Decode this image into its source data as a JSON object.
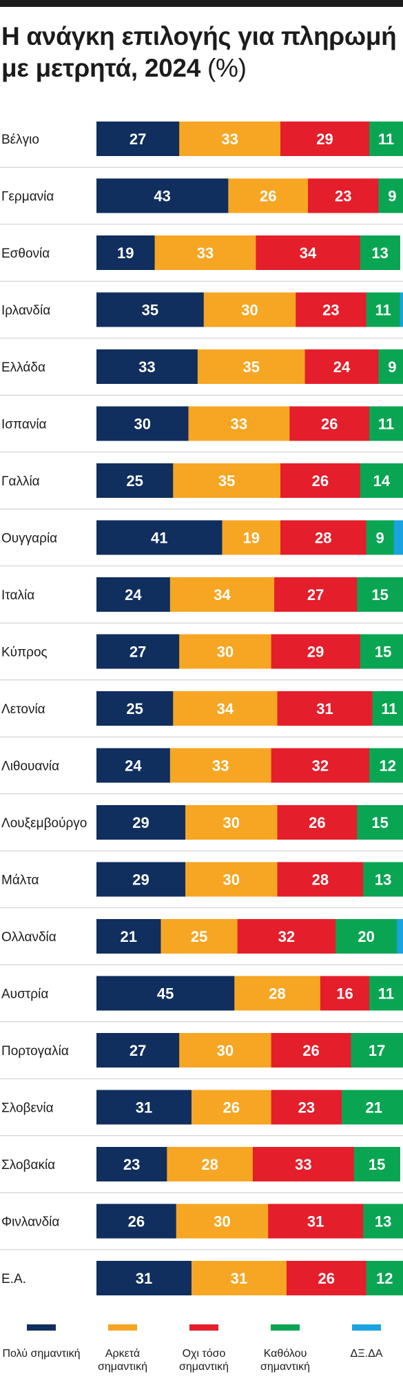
{
  "title": "Η ανάγκη επιλογής για πληρωμή με μετρητά, 2024",
  "title_unit": "(%)",
  "colors": {
    "very": "#102e5e",
    "fairly": "#f6a623",
    "not_very": "#e41e2b",
    "not_at_all": "#0aa552",
    "dk": "#19a3e0",
    "separator": "#c9c9c9"
  },
  "legend": [
    {
      "key": "very",
      "label": "Πολύ σημαντική"
    },
    {
      "key": "fairly",
      "label": "Αρκετά σημαντική"
    },
    {
      "key": "not_very",
      "label": "Οχι τόσο σημαντική"
    },
    {
      "key": "not_at_all",
      "label": "Καθόλου σημαντική"
    },
    {
      "key": "dk",
      "label": "ΔΞ.ΔΑ"
    }
  ],
  "chart_data": {
    "type": "bar",
    "orientation": "horizontal",
    "stacked": true,
    "xlim": [
      0,
      100
    ],
    "categories": [
      "Βέλγιο",
      "Γερμανία",
      "Εσθονία",
      "Ιρλανδία",
      "Ελλάδα",
      "Ισπανία",
      "Γαλλία",
      "Ουγγαρία",
      "Ιταλία",
      "Κύπρος",
      "Λετονία",
      "Λιθουανία",
      "Λουξεμβούργο",
      "Μάλτα",
      "Ολλανδία",
      "Αυστρία",
      "Πορτογαλία",
      "Σλοβενία",
      "Σλοβακία",
      "Φινλανδία",
      "Ε.Α."
    ],
    "series": [
      {
        "name": "Πολύ σημαντική",
        "key": "very",
        "values": [
          27,
          43,
          19,
          35,
          33,
          30,
          25,
          41,
          24,
          27,
          25,
          24,
          29,
          29,
          21,
          45,
          27,
          31,
          23,
          26,
          31
        ]
      },
      {
        "name": "Αρκετά σημαντική",
        "key": "fairly",
        "values": [
          33,
          26,
          33,
          30,
          35,
          33,
          35,
          19,
          34,
          30,
          34,
          33,
          30,
          30,
          25,
          28,
          30,
          26,
          28,
          30,
          31
        ]
      },
      {
        "name": "Οχι τόσο σημαντική",
        "key": "not_very",
        "values": [
          29,
          23,
          34,
          23,
          24,
          26,
          26,
          28,
          27,
          29,
          31,
          32,
          26,
          28,
          32,
          16,
          26,
          23,
          33,
          31,
          26
        ]
      },
      {
        "name": "Καθόλου σημαντική",
        "key": "not_at_all",
        "values": [
          11,
          9,
          13,
          11,
          9,
          11,
          14,
          9,
          15,
          15,
          11,
          12,
          15,
          13,
          20,
          11,
          17,
          21,
          15,
          13,
          12
        ]
      },
      {
        "name": "ΔΞ.ΔΑ",
        "key": "dk",
        "values": [
          0,
          0,
          0,
          1,
          0,
          0,
          0,
          3,
          0,
          0,
          0,
          0,
          1,
          0,
          2,
          1,
          0,
          0,
          0,
          0,
          1
        ]
      }
    ]
  }
}
